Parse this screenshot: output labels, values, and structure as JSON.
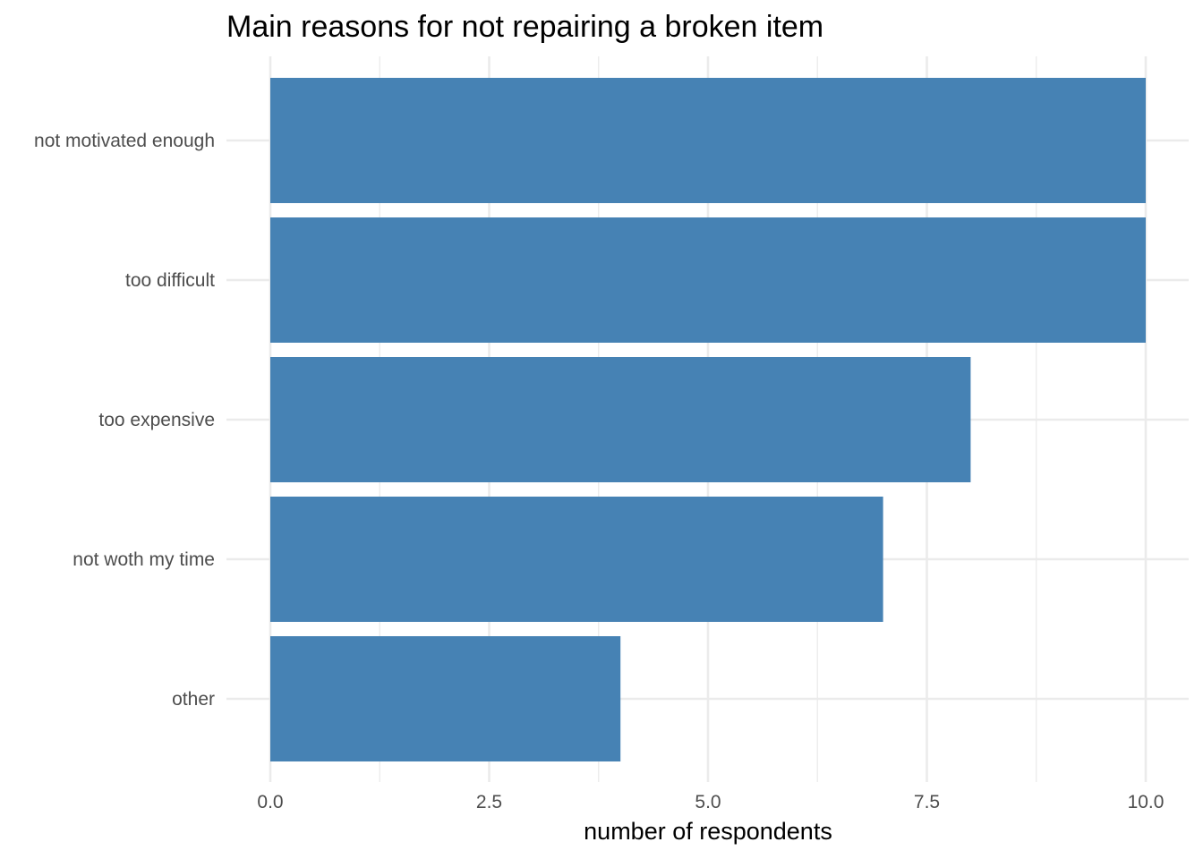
{
  "chart_data": {
    "type": "bar",
    "orientation": "horizontal",
    "title": "Main reasons for not repairing a broken item",
    "xlabel": "number of respondents",
    "ylabel": "",
    "categories": [
      "not motivated enough",
      "too difficult",
      "too expensive",
      "not woth my time",
      "other"
    ],
    "values": [
      10,
      10,
      8,
      7,
      4
    ],
    "xlim": [
      0,
      10
    ],
    "xticks": [
      "0.0",
      "2.5",
      "5.0",
      "7.5",
      "10.0"
    ],
    "grid": true,
    "legend": "none",
    "bar_color": "#4682b4"
  }
}
